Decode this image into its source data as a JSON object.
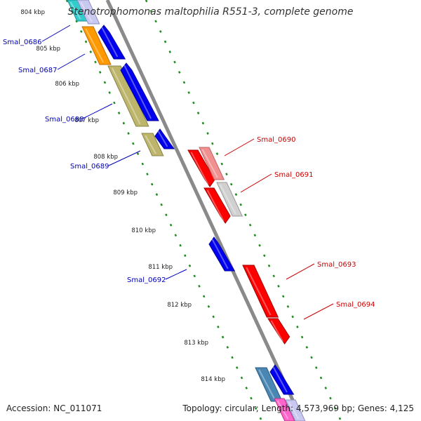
{
  "title": "Stenotrophomonas maltophilia R551-3, complete genome",
  "footer": {
    "accession": "Accession: NC_011071",
    "topology": "Topology: circular; Length: 4,573,969 bp; Genes: 4,125"
  },
  "colors": {
    "backbone": "#8a8a8a",
    "tick_dots": "#1e8c1e",
    "label_left": "#0000bb",
    "label_right": "#cc0000"
  },
  "kbp_labels": [
    "804 kbp",
    "805 kbp",
    "806 kbp",
    "807 kbp",
    "808 kbp",
    "809 kbp",
    "810 kbp",
    "811 kbp",
    "812 kbp",
    "813 kbp",
    "814 kbp"
  ],
  "genes": [
    {
      "name": "Smal_0686",
      "side": "left",
      "labelled": true
    },
    {
      "name": "Smal_0687",
      "side": "left",
      "labelled": true
    },
    {
      "name": "Smal_0688",
      "side": "left",
      "labelled": true
    },
    {
      "name": "Smal_0689",
      "side": "left",
      "labelled": true
    },
    {
      "name": "Smal_0690",
      "side": "right",
      "labelled": true
    },
    {
      "name": "Smal_0691",
      "side": "right",
      "labelled": true
    },
    {
      "name": "Smal_0692",
      "side": "left",
      "labelled": true
    },
    {
      "name": "Smal_0693",
      "side": "right",
      "labelled": true
    },
    {
      "name": "Smal_0694",
      "side": "right",
      "labelled": true
    }
  ]
}
